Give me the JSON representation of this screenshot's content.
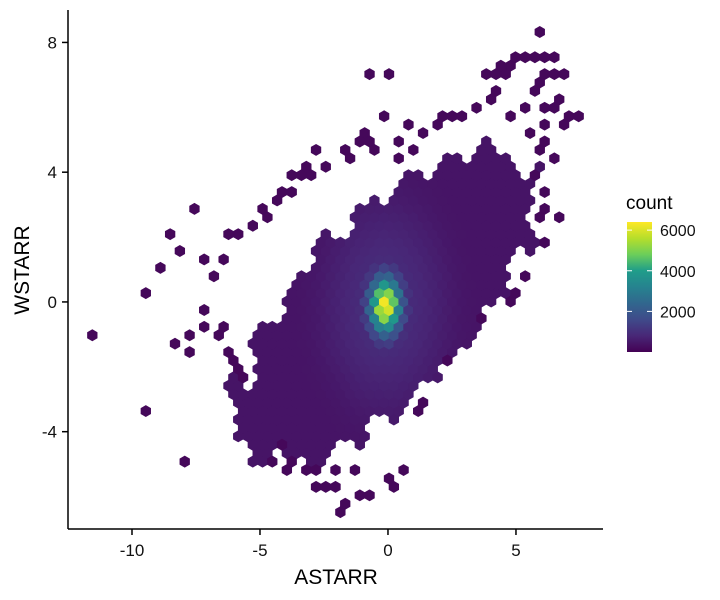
{
  "chart_data": {
    "type": "heatmap",
    "subtype": "hexbin",
    "title": "",
    "xlabel": "ASTARR",
    "ylabel": "WSTARR",
    "xlim": [
      -12.5,
      8.4
    ],
    "ylim": [
      -7.0,
      9.0
    ],
    "x_ticks": [
      -10,
      -5,
      0,
      5
    ],
    "x_tick_labels": [
      "-10",
      "-5",
      "0",
      "5"
    ],
    "y_ticks": [
      -4,
      0,
      4,
      8
    ],
    "y_tick_labels": [
      "-4",
      "0",
      "4",
      "8"
    ],
    "grid": false,
    "hex_width": 0.38,
    "distribution": {
      "center": [
        -0.1,
        -0.1
      ],
      "peak_count": 6400,
      "core_sd": [
        0.38,
        0.55
      ],
      "body_rotation_deg": 37,
      "body_sd_major": 2.8,
      "body_sd_minor": 1.35,
      "body_extent_major": 7.0,
      "body_extent_minor": 2.9
    },
    "scattered_bins": [
      [
        -11.7,
        -0.9
      ],
      [
        -9.5,
        0.4
      ],
      [
        -9.3,
        -3.4
      ],
      [
        -9.0,
        1.1
      ],
      [
        -8.6,
        2.1
      ],
      [
        -7.9,
        -1.5
      ],
      [
        -7.9,
        -4.9
      ],
      [
        -7.4,
        2.9
      ],
      [
        -7.1,
        -0.2
      ],
      [
        -6.8,
        0.9
      ],
      [
        -6.4,
        -1.6
      ],
      [
        -6.3,
        1.4
      ],
      [
        -6.1,
        2.0
      ],
      [
        -5.8,
        -2.2
      ],
      [
        -5.6,
        -3.9
      ],
      [
        -5.2,
        -4.1
      ],
      [
        -4.9,
        2.6
      ],
      [
        -4.6,
        -4.9
      ],
      [
        -4.2,
        3.4
      ],
      [
        -4.0,
        -5.2
      ],
      [
        -3.4,
        3.8
      ],
      [
        -3.3,
        -5.1
      ],
      [
        -2.7,
        -5.8
      ],
      [
        -2.4,
        -5.8
      ],
      [
        -2.0,
        -5.8
      ],
      [
        -1.8,
        -6.2
      ],
      [
        -1.7,
        -6.5
      ],
      [
        -1.3,
        -5.3
      ],
      [
        -0.9,
        5.3
      ],
      [
        -0.8,
        6.9
      ],
      [
        -0.6,
        4.9
      ],
      [
        -0.3,
        5.6
      ],
      [
        -0.7,
        4.6
      ],
      [
        -1.0,
        5.0
      ],
      [
        -1.3,
        4.5
      ],
      [
        -1.5,
        4.6
      ],
      [
        0.0,
        6.9
      ],
      [
        0.3,
        4.5
      ],
      [
        0.6,
        5.0
      ],
      [
        0.9,
        4.6
      ],
      [
        1.3,
        5.3
      ],
      [
        0.5,
        4.3
      ],
      [
        1.2,
        -3.3
      ],
      [
        1.5,
        -3.2
      ],
      [
        -0.6,
        -6.0
      ],
      [
        0.4,
        -5.8
      ],
      [
        0.1,
        -5.5
      ],
      [
        0.5,
        -5.2
      ],
      [
        -2.2,
        -5.3
      ],
      [
        -2.9,
        -5.3
      ],
      [
        -3.6,
        -4.8
      ],
      [
        -4.0,
        -4.4
      ],
      [
        -4.4,
        -4.3
      ],
      [
        -5.0,
        -3.4
      ],
      [
        -5.6,
        -2.4
      ],
      [
        -6.0,
        -2.1
      ],
      [
        -6.6,
        -1.1
      ],
      [
        -7.0,
        -0.7
      ],
      [
        -7.6,
        -1.1
      ],
      [
        -8.3,
        -1.4
      ],
      [
        -5.8,
        2.2
      ],
      [
        -5.3,
        2.3
      ],
      [
        -5.0,
        2.9
      ],
      [
        -4.5,
        3.0
      ],
      [
        -3.8,
        3.4
      ],
      [
        -3.0,
        3.9
      ],
      [
        -2.4,
        4.2
      ],
      [
        -2.7,
        4.6
      ],
      [
        -3.1,
        4.2
      ],
      [
        -3.6,
        4.0
      ],
      [
        0.8,
        5.4
      ],
      [
        1.8,
        5.5
      ],
      [
        2.2,
        5.8
      ],
      [
        2.6,
        5.6
      ],
      [
        2.9,
        5.7
      ],
      [
        3.4,
        5.9
      ],
      [
        3.9,
        6.3
      ],
      [
        4.3,
        6.6
      ],
      [
        4.6,
        6.9
      ],
      [
        4.9,
        7.2
      ],
      [
        5.1,
        7.6
      ],
      [
        5.4,
        7.6
      ],
      [
        5.7,
        7.6
      ],
      [
        6.1,
        7.6
      ],
      [
        5.9,
        8.2
      ],
      [
        6.5,
        7.6
      ],
      [
        6.6,
        7.0
      ],
      [
        6.3,
        7.1
      ],
      [
        6.9,
        7.1
      ],
      [
        5.9,
        6.8
      ],
      [
        5.6,
        6.6
      ],
      [
        4.1,
        7.0
      ],
      [
        3.8,
        6.9
      ],
      [
        4.4,
        7.2
      ],
      [
        6.0,
        6.0
      ],
      [
        6.4,
        5.9
      ],
      [
        6.7,
        6.2
      ],
      [
        7.0,
        5.8
      ],
      [
        7.3,
        5.7
      ],
      [
        7.5,
        5.6
      ],
      [
        6.8,
        5.5
      ],
      [
        6.1,
        5.4
      ],
      [
        5.7,
        5.1
      ],
      [
        6.3,
        4.9
      ],
      [
        6.0,
        4.6
      ],
      [
        6.6,
        4.4
      ],
      [
        5.9,
        3.8
      ],
      [
        6.2,
        3.3
      ],
      [
        5.6,
        3.0
      ],
      [
        6.2,
        2.9
      ],
      [
        6.6,
        2.6
      ],
      [
        5.8,
        2.5
      ],
      [
        6.1,
        1.8
      ],
      [
        5.6,
        1.5
      ],
      [
        5.3,
        0.8
      ],
      [
        5.0,
        0.4
      ],
      [
        4.6,
        0.1
      ],
      [
        4.1,
        -0.1
      ],
      [
        3.7,
        -0.4
      ],
      [
        3.2,
        -0.9
      ],
      [
        2.7,
        -1.4
      ],
      [
        2.3,
        -1.8
      ],
      [
        1.9,
        -2.3
      ],
      [
        5.3,
        6.0
      ],
      [
        4.9,
        5.6
      ],
      [
        -1.2,
        -6.0
      ],
      [
        -5.9,
        -1.9
      ],
      [
        -6.5,
        -0.8
      ],
      [
        -7.2,
        1.2
      ],
      [
        -8.1,
        1.6
      ]
    ],
    "legend": {
      "title": "count",
      "ticks": [
        2000,
        4000,
        6000
      ],
      "tick_labels": [
        "2000",
        "4000",
        "6000"
      ],
      "range": [
        1,
        6400
      ],
      "placement": "right",
      "colormap": "viridis"
    },
    "colors": {
      "viridis": [
        "#440154",
        "#482777",
        "#3f4a8a",
        "#31678e",
        "#26838f",
        "#1f9d8a",
        "#6cce5a",
        "#b6de2b",
        "#fee825"
      ],
      "axis": "#000000"
    }
  }
}
